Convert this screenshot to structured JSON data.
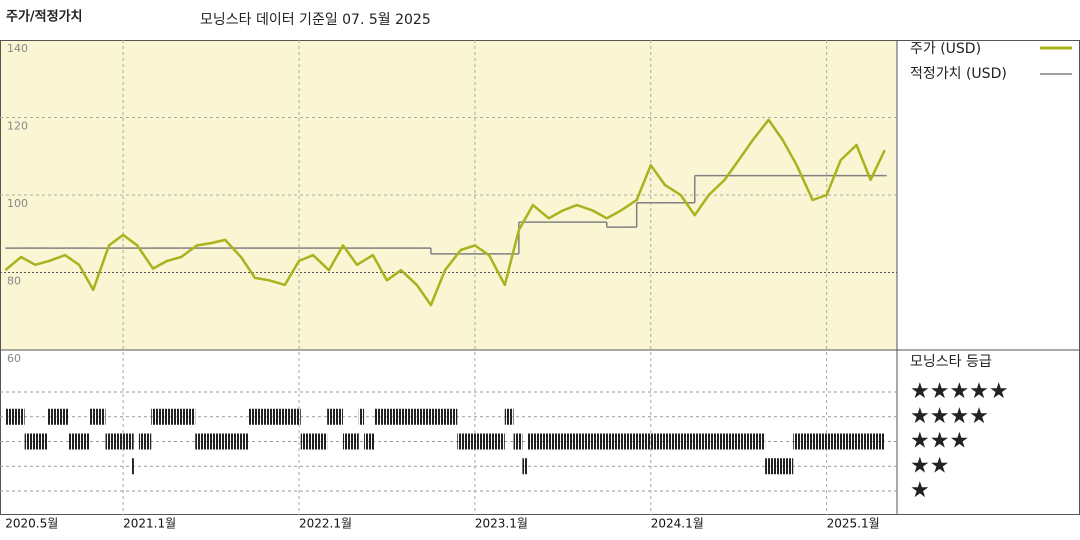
{
  "chart_data": {
    "type": "line",
    "title": "주가/적정가치",
    "subtitle": "모닝스타 데이터 기준일 07. 5월 2025",
    "x": [
      2020.33,
      2020.42,
      2020.5,
      2020.58,
      2020.67,
      2020.75,
      2020.83,
      2020.92,
      2021.0,
      2021.08,
      2021.17,
      2021.25,
      2021.33,
      2021.42,
      2021.5,
      2021.58,
      2021.67,
      2021.75,
      2021.83,
      2021.92,
      2022.0,
      2022.08,
      2022.17,
      2022.25,
      2022.33,
      2022.42,
      2022.5,
      2022.58,
      2022.67,
      2022.75,
      2022.83,
      2022.92,
      2023.0,
      2023.08,
      2023.17,
      2023.25,
      2023.33,
      2023.42,
      2023.5,
      2023.58,
      2023.67,
      2023.75,
      2023.83,
      2023.92,
      2024.0,
      2024.08,
      2024.17,
      2024.25,
      2024.33,
      2024.42,
      2024.5,
      2024.58,
      2024.67,
      2024.75,
      2024.83,
      2024.92,
      2025.0,
      2025.08,
      2025.17,
      2025.25,
      2025.33
    ],
    "series": [
      {
        "name": "주가 (USD)",
        "color": "#a9b31e",
        "values": [
          80.6,
          84,
          82,
          83,
          84.5,
          82,
          75.5,
          87,
          89.7,
          87,
          81,
          83,
          84,
          87,
          87.6,
          88.4,
          84,
          78.6,
          78,
          76.8,
          83,
          84.5,
          80.6,
          87,
          82,
          84.5,
          78,
          80.6,
          76.8,
          71.6,
          80.6,
          85.8,
          87,
          84.5,
          76.8,
          91,
          97.4,
          94,
          96,
          97.4,
          96,
          94,
          96,
          98.7,
          107.7,
          102.6,
          100,
          94.8,
          100,
          103.9,
          109,
          114.2,
          119.4,
          114.2,
          107.7,
          98.7,
          100,
          109,
          112.9,
          103.9,
          111.6
        ]
      },
      {
        "name": "적정가치 (USD)",
        "color": "#808080",
        "values": [
          86.3,
          86.3,
          86.3,
          86.3,
          86.3,
          86.3,
          86.3,
          86.3,
          86.3,
          86.3,
          86.3,
          86.3,
          86.3,
          86.3,
          86.3,
          86.3,
          86.3,
          86.3,
          86.3,
          86.3,
          86.3,
          86.3,
          86.3,
          86.3,
          86.3,
          86.3,
          86.3,
          86.3,
          86.3,
          84.8,
          84.8,
          84.8,
          84.8,
          84.8,
          84.8,
          93,
          93,
          93,
          93,
          93,
          93,
          91.7,
          91.7,
          98,
          98,
          98,
          98,
          105,
          105,
          105,
          105,
          105,
          105,
          105,
          105,
          105,
          105,
          105,
          105,
          105,
          105
        ]
      }
    ],
    "xlim": [
      2020.3,
      2025.4
    ],
    "xticks": [
      {
        "value": 2020.33,
        "label": "2020.5월"
      },
      {
        "value": 2021,
        "label": "2021.1월"
      },
      {
        "value": 2022,
        "label": "2022.1월"
      },
      {
        "value": 2023,
        "label": "2023.1월"
      },
      {
        "value": 2024,
        "label": "2024.1월"
      },
      {
        "value": 2025,
        "label": "2025.1월"
      }
    ],
    "ylim": [
      60,
      140
    ],
    "yticks": [
      60,
      80,
      100,
      120,
      140
    ],
    "grid": true,
    "rating_title": "모닝스타 등급",
    "rating_legend": [
      "★★★★★",
      "★★★★",
      "★★★",
      "★★",
      "★"
    ],
    "ratings": {
      "stars": [
        4,
        4,
        4,
        4,
        4,
        4,
        4,
        4,
        4,
        3,
        3,
        3,
        3,
        3,
        3,
        3,
        3,
        3,
        3,
        3,
        3,
        2,
        2,
        2
      ],
      "start": [
        2020.33,
        2020.57,
        2020.81,
        2021.16,
        2021.71,
        2022.16,
        2022.34,
        2022.43,
        2023.17,
        2020.44,
        2020.69,
        2020.9,
        2021.09,
        2021.41,
        2022.01,
        2022.25,
        2022.37,
        2022.9,
        2023.22,
        2023.3,
        2024.81,
        2021.05,
        2023.27,
        2024.65
      ],
      "end": [
        2020.44,
        2020.69,
        2020.9,
        2021.41,
        2022.01,
        2022.25,
        2022.37,
        2022.9,
        2023.22,
        2020.57,
        2020.81,
        2021.06,
        2021.16,
        2021.71,
        2022.16,
        2022.34,
        2022.43,
        2023.17,
        2023.27,
        2024.65,
        2025.33,
        2021.06,
        2023.3,
        2024.81
      ]
    }
  }
}
